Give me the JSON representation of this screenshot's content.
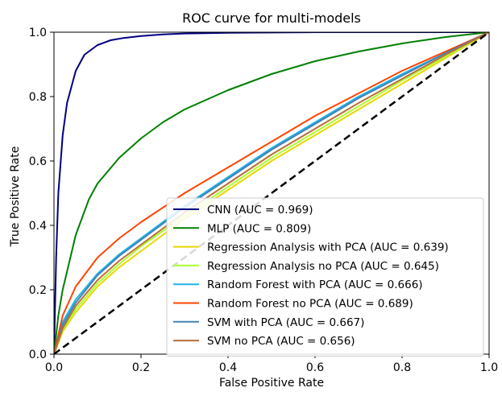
{
  "chart_data": {
    "type": "line",
    "title": "ROC curve for multi-models",
    "xlabel": "False Positive Rate",
    "ylabel": "True Positive Rate",
    "xlim": [
      0.0,
      1.0
    ],
    "ylim": [
      0.0,
      1.0
    ],
    "xticks": [
      "0.0",
      "0.2",
      "0.4",
      "0.6",
      "0.8",
      "1.0"
    ],
    "yticks": [
      "0.0",
      "0.2",
      "0.4",
      "0.6",
      "0.8",
      "1.0"
    ],
    "grid": false,
    "legend_position": "lower-right",
    "reference_line": {
      "x": [
        0.0,
        1.0
      ],
      "y": [
        0.0,
        1.0
      ],
      "color": "#000000",
      "style": "dashed"
    },
    "series": [
      {
        "name": "CNN (AUC = 0.969)",
        "color": "#000080",
        "x": [
          0.0,
          0.005,
          0.01,
          0.02,
          0.03,
          0.05,
          0.07,
          0.1,
          0.13,
          0.16,
          0.2,
          0.25,
          0.3,
          0.4,
          0.5,
          0.6,
          0.8,
          1.0
        ],
        "y": [
          0.0,
          0.3,
          0.5,
          0.68,
          0.78,
          0.88,
          0.93,
          0.96,
          0.975,
          0.982,
          0.988,
          0.993,
          0.996,
          0.998,
          0.999,
          1.0,
          1.0,
          1.0
        ]
      },
      {
        "name": "MLP (AUC = 0.809)",
        "color": "#008000",
        "x": [
          0.0,
          0.01,
          0.02,
          0.05,
          0.08,
          0.1,
          0.15,
          0.2,
          0.25,
          0.3,
          0.35,
          0.4,
          0.5,
          0.6,
          0.7,
          0.8,
          0.9,
          1.0
        ],
        "y": [
          0.0,
          0.12,
          0.2,
          0.37,
          0.48,
          0.53,
          0.61,
          0.67,
          0.72,
          0.76,
          0.79,
          0.82,
          0.87,
          0.91,
          0.94,
          0.965,
          0.985,
          1.0
        ]
      },
      {
        "name": "Regression Analysis with PCA (AUC = 0.639)",
        "color": "#e6d800",
        "x": [
          0.0,
          0.02,
          0.05,
          0.1,
          0.15,
          0.2,
          0.3,
          0.4,
          0.5,
          0.6,
          0.7,
          0.8,
          0.9,
          1.0
        ],
        "y": [
          0.0,
          0.07,
          0.13,
          0.21,
          0.27,
          0.32,
          0.42,
          0.51,
          0.6,
          0.68,
          0.76,
          0.84,
          0.92,
          1.0
        ]
      },
      {
        "name": "Regression Analysis no PCA (AUC = 0.645)",
        "color": "#adff2f",
        "x": [
          0.0,
          0.02,
          0.05,
          0.1,
          0.15,
          0.2,
          0.3,
          0.4,
          0.5,
          0.6,
          0.7,
          0.8,
          0.9,
          1.0
        ],
        "y": [
          0.0,
          0.075,
          0.14,
          0.22,
          0.28,
          0.335,
          0.43,
          0.52,
          0.61,
          0.69,
          0.77,
          0.85,
          0.925,
          1.0
        ]
      },
      {
        "name": "Random Forest with PCA  (AUC = 0.666)",
        "color": "#1eb4e6",
        "x": [
          0.0,
          0.02,
          0.05,
          0.1,
          0.15,
          0.2,
          0.3,
          0.4,
          0.5,
          0.6,
          0.7,
          0.8,
          0.9,
          1.0
        ],
        "y": [
          0.0,
          0.1,
          0.17,
          0.25,
          0.31,
          0.36,
          0.46,
          0.55,
          0.64,
          0.72,
          0.8,
          0.87,
          0.935,
          1.0
        ]
      },
      {
        "name": "Random Forest no PCA (AUC = 0.689)",
        "color": "#ff4500",
        "x": [
          0.0,
          0.02,
          0.05,
          0.1,
          0.15,
          0.2,
          0.3,
          0.4,
          0.5,
          0.6,
          0.7,
          0.8,
          0.9,
          1.0
        ],
        "y": [
          0.0,
          0.12,
          0.21,
          0.3,
          0.36,
          0.41,
          0.5,
          0.58,
          0.66,
          0.74,
          0.81,
          0.88,
          0.94,
          1.0
        ]
      },
      {
        "name": "SVM with PCA (AUC = 0.667)",
        "color": "#4682b4",
        "x": [
          0.0,
          0.02,
          0.05,
          0.1,
          0.15,
          0.2,
          0.3,
          0.4,
          0.5,
          0.6,
          0.7,
          0.8,
          0.9,
          1.0
        ],
        "y": [
          0.0,
          0.09,
          0.16,
          0.245,
          0.305,
          0.355,
          0.455,
          0.545,
          0.635,
          0.715,
          0.795,
          0.865,
          0.935,
          1.0
        ]
      },
      {
        "name": "SVM no PCA (AUC = 0.656)",
        "color": "#b86e3a",
        "x": [
          0.0,
          0.02,
          0.05,
          0.1,
          0.15,
          0.2,
          0.3,
          0.4,
          0.5,
          0.6,
          0.7,
          0.8,
          0.9,
          1.0
        ],
        "y": [
          0.0,
          0.08,
          0.15,
          0.23,
          0.29,
          0.34,
          0.44,
          0.53,
          0.62,
          0.7,
          0.78,
          0.855,
          0.93,
          1.0
        ]
      }
    ]
  }
}
